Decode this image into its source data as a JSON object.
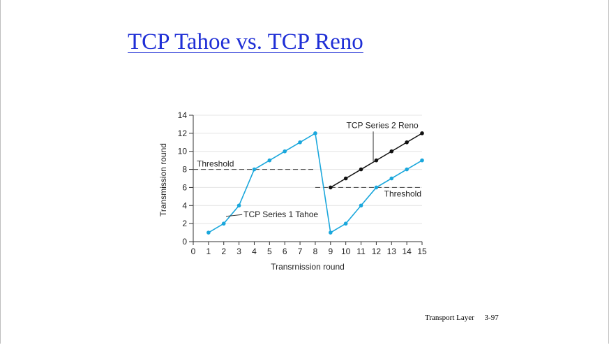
{
  "slide": {
    "title": "TCP Tahoe vs. TCP Reno",
    "footer_section": "Transport Layer",
    "footer_page": "3-97"
  },
  "chart_data": {
    "type": "line",
    "xlabel": "Transrnission round",
    "ylabel": "Transmission round",
    "xlim": [
      0,
      15
    ],
    "ylim": [
      0,
      14
    ],
    "x_ticks": [
      0,
      1,
      2,
      3,
      4,
      5,
      6,
      7,
      8,
      9,
      10,
      11,
      12,
      13,
      14,
      15
    ],
    "y_ticks": [
      0,
      2,
      4,
      6,
      8,
      10,
      12,
      14
    ],
    "grid": "horizontal",
    "series": [
      {
        "name": "TCP Series 1 Tahoe",
        "color": "#1aa7dc",
        "x": [
          1,
          2,
          3,
          4,
          5,
          6,
          7,
          8,
          9,
          10,
          11,
          12,
          13,
          14,
          15
        ],
        "y": [
          1,
          2,
          4,
          8,
          9,
          10,
          11,
          12,
          1,
          2,
          4,
          6,
          7,
          8,
          9
        ]
      },
      {
        "name": "TCP Series 2 Reno",
        "color": "#111111",
        "x": [
          9,
          10,
          11,
          12,
          13,
          14,
          15
        ],
        "y": [
          6,
          7,
          8,
          9,
          10,
          11,
          12
        ]
      }
    ],
    "thresholds": [
      {
        "label": "Threshold",
        "y": 8,
        "x_start": 0,
        "x_end": 8
      },
      {
        "label": "Threshold",
        "y": 6,
        "x_start": 8,
        "x_end": 15
      }
    ],
    "annotations": [
      {
        "text": "TCP Series 1 Tahoe",
        "x": 3.3,
        "y": 3
      },
      {
        "text": "TCP Series 2 Reno",
        "x": 12.4,
        "y": 9.6
      }
    ]
  }
}
